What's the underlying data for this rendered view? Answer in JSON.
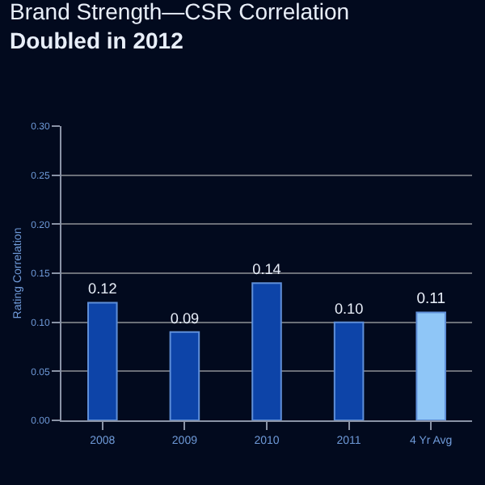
{
  "chart_data": {
    "type": "bar",
    "title": "Brand Strength—CSR Correlation Doubled in 2012",
    "ylabel": "Rating Correlation",
    "categories": [
      "2008",
      "2009",
      "2010",
      "2011",
      "4 Yr Avg"
    ],
    "values": [
      0.12,
      0.09,
      0.14,
      0.1,
      0.11
    ],
    "value_labels": [
      "0.12",
      "0.09",
      "0.14",
      "0.10",
      "0.11"
    ],
    "colors": [
      "#0d44a8",
      "#0d44a8",
      "#0d44a8",
      "#0d44a8",
      "#8fc6f7"
    ],
    "ylim": [
      0,
      0.3
    ],
    "yticks": [
      "0.00",
      "0.05",
      "0.10",
      "0.15",
      "0.20",
      "0.25",
      "0.30"
    ],
    "grid": "y"
  }
}
